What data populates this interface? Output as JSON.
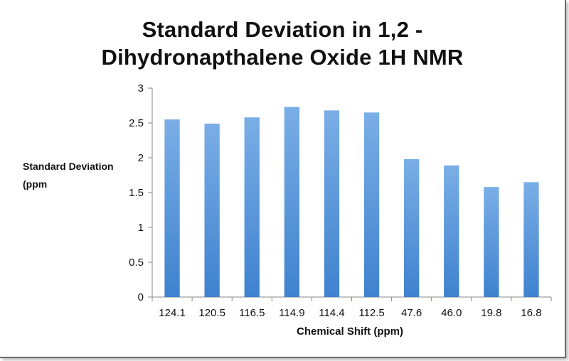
{
  "chart_data": {
    "type": "bar",
    "title_lines": [
      "Standard Deviation in 1,2 -",
      "Dihydronapthalene Oxide 1H NMR"
    ],
    "xlabel": "Chemical Shift (ppm)",
    "ylabel_lines": [
      "Standard Deviation",
      "(ppm"
    ],
    "categories": [
      "124.1",
      "120.5",
      "116.5",
      "114.9",
      "114.4",
      "112.5",
      "47.6",
      "46.0",
      "19.8",
      "16.8"
    ],
    "values": [
      2.55,
      2.49,
      2.58,
      2.73,
      2.68,
      2.65,
      1.98,
      1.89,
      1.58,
      1.65
    ],
    "ylim": [
      0,
      3
    ],
    "yticks": [
      "0",
      "0.5",
      "1",
      "1.5",
      "2",
      "2.5",
      "3"
    ],
    "grid": false,
    "legend": "none",
    "bar_color_top": "#7aaee6",
    "bar_color_bottom": "#3f82cf"
  }
}
